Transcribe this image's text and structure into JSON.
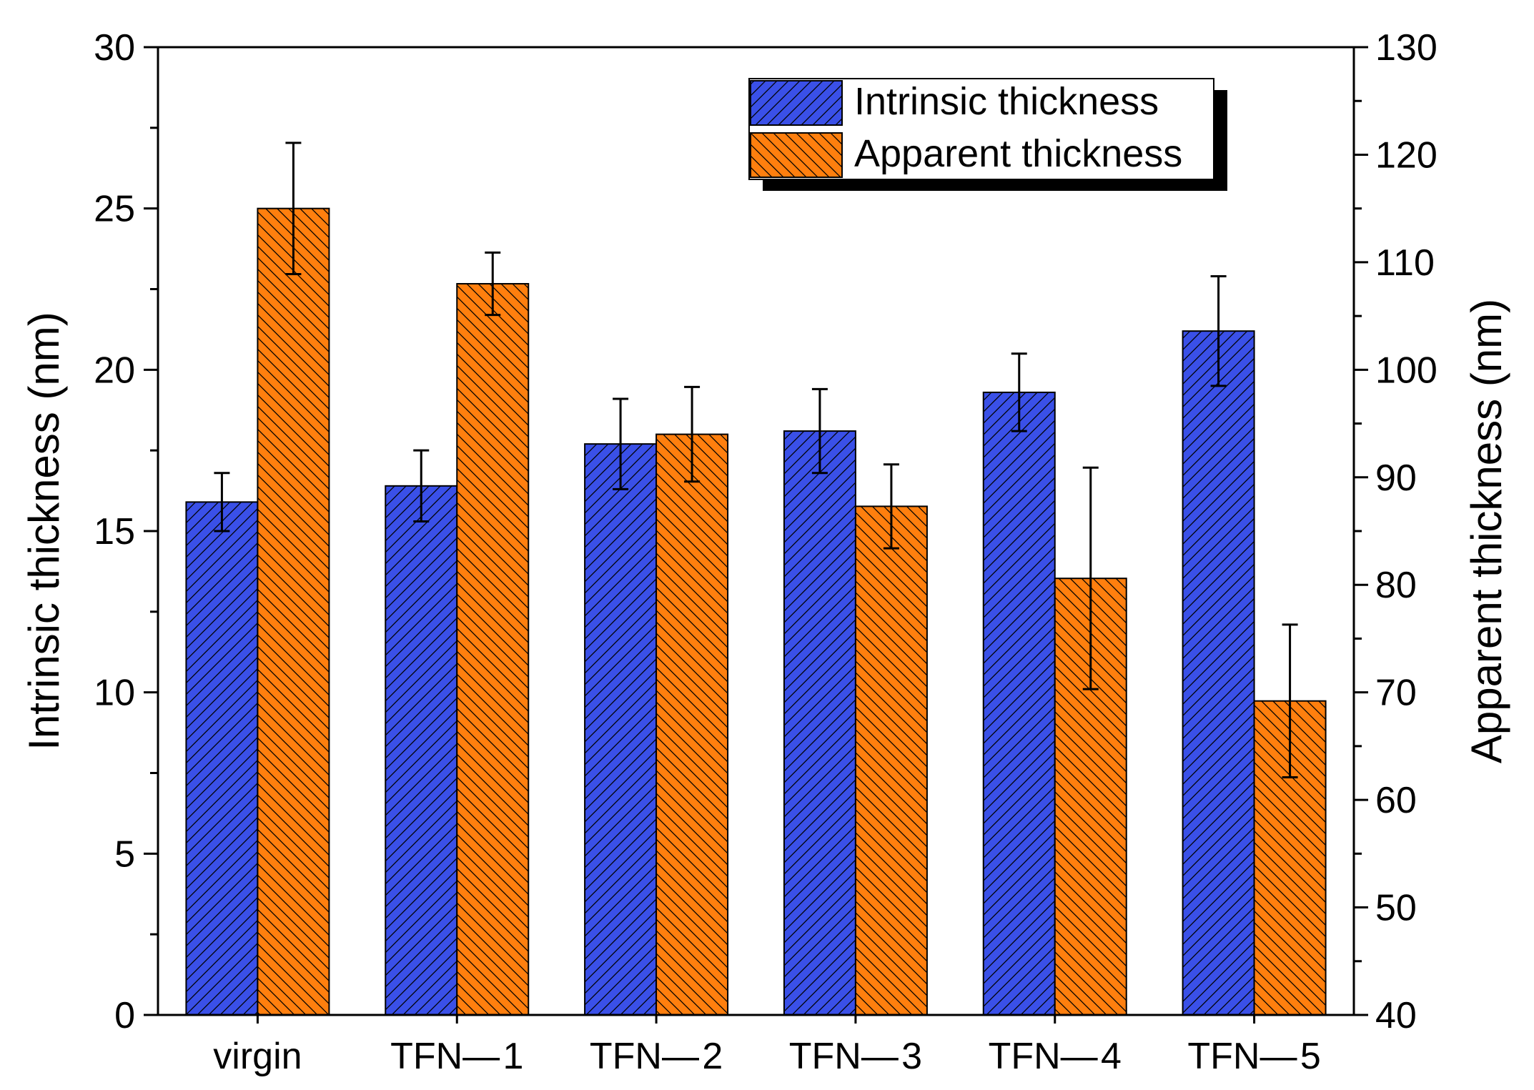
{
  "chart_data": {
    "type": "bar",
    "categories": [
      "virgin",
      "TFN— 1",
      "TFN— 2",
      "TFN— 3",
      "TFN— 4",
      "TFN— 5"
    ],
    "series": [
      {
        "name": "Intrinsic thickness",
        "axis": "left",
        "color": "#3a50e8",
        "hatch": "forward-diagonal",
        "values": [
          15.9,
          16.4,
          17.7,
          18.1,
          19.3,
          21.2
        ],
        "errors": [
          0.9,
          1.1,
          1.4,
          1.3,
          1.2,
          1.7
        ]
      },
      {
        "name": "Apparent thickness",
        "axis": "right",
        "color": "#ff7f0e",
        "hatch": "backward-diagonal",
        "values": [
          115.0,
          108.0,
          94.0,
          87.3,
          80.6,
          69.2
        ],
        "errors": [
          6.1,
          2.9,
          4.4,
          3.9,
          10.3,
          7.1
        ]
      }
    ],
    "xlabel": "",
    "y_left": {
      "label": "Intrinsic thickness (nm)",
      "range": [
        0,
        30
      ],
      "ticks": [
        "0",
        "5",
        "10",
        "15",
        "20",
        "25",
        "30"
      ]
    },
    "y_right": {
      "label": "Apparent thickness (nm)",
      "range": [
        40,
        130
      ],
      "ticks": [
        "40",
        "50",
        "60",
        "70",
        "80",
        "90",
        "100",
        "110",
        "120",
        "130"
      ]
    },
    "grid": false,
    "legend_position": "top-right"
  }
}
